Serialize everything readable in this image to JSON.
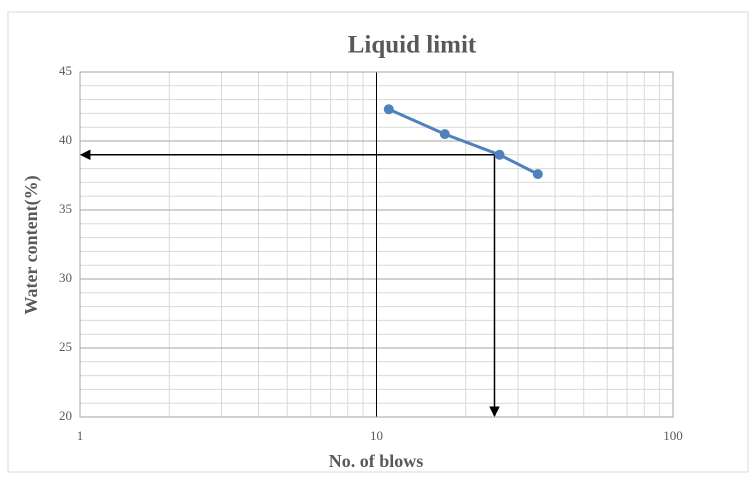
{
  "chart_data": {
    "type": "line",
    "title": "Liquid limit",
    "x_label": "No. of blows",
    "y_label": "Water content(%)",
    "x": [
      11,
      17,
      26,
      35
    ],
    "series": [
      {
        "name": "Water content",
        "color": "#4f81bd",
        "values": [
          42.3,
          40.5,
          39,
          37.6
        ]
      }
    ],
    "xlim": [
      1,
      100
    ],
    "xticks": [
      1,
      10,
      100
    ],
    "x_log": true,
    "ylim": [
      20,
      45
    ],
    "yticks": [
      20,
      25,
      30,
      35,
      40,
      45
    ],
    "grid": true,
    "minor_grid": true,
    "reference_point": {
      "x": 25,
      "y": 39
    }
  }
}
